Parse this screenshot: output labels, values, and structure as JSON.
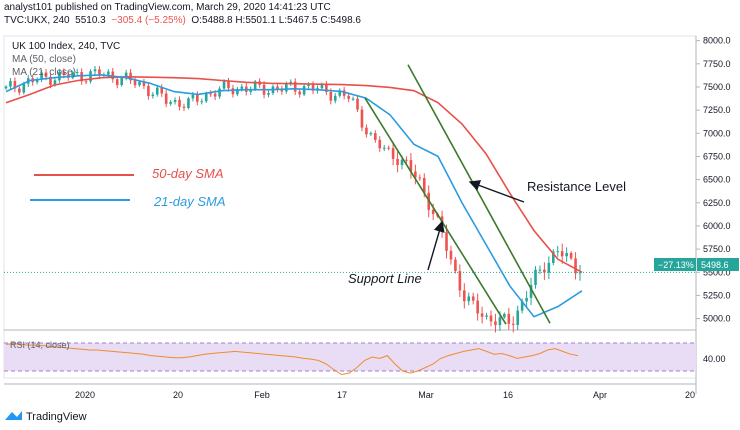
{
  "header": {
    "published": "analyst101 published on TradingView.com, March 29, 2020 14:41:23 UTC",
    "ticker_line": "TVC:UKX, 240",
    "last": "5510.3",
    "change": "−305.4 (−5.25%)",
    "o_label": "O:",
    "o_value": "5488.8",
    "h_label": "H:",
    "h_value": "5501.1",
    "l_label": "L:",
    "l_value": "5467.5",
    "c_label": "C:",
    "c_value": "5498.6"
  },
  "legend": {
    "symbol": "UK 100 Index, 240, TVC",
    "ma50": "MA (50, close)",
    "ma21": "MA (21, close)"
  },
  "annotations": {
    "sma50": "50-day SMA",
    "sma21": "21-day SMA",
    "resistance": "Resistance Level",
    "support": "Support Line"
  },
  "rsi": {
    "label": "RSI (14, close)",
    "tick": "40.00"
  },
  "price_tag": {
    "pct": "−27.13%",
    "price": "5498.6"
  },
  "footer": {
    "brand": "TradingView"
  },
  "colors": {
    "up": "#26a69a",
    "down": "#ef5350",
    "ma50": "#e8504a",
    "ma21": "#2b9ce0",
    "trendline": "#3b7a2a",
    "rsi_line": "#f08c2e",
    "rsi_band": "#e9dcf5"
  },
  "chart_data": {
    "type": "candlestick",
    "title": "UK 100 Index, 240, TVC",
    "y_ticks": [
      "8000.0",
      "7750.0",
      "7500.0",
      "7250.0",
      "7000.0",
      "6750.0",
      "6500.0",
      "6250.0",
      "6000.0",
      "5750.0",
      "5500.0",
      "5250.0",
      "5000.0"
    ],
    "ylim": [
      4920,
      8050
    ],
    "x_ticks": [
      "2020",
      "20",
      "Feb",
      "17",
      "Mar",
      "16",
      "Apr",
      "20"
    ],
    "sma50": [
      7330,
      7420,
      7520,
      7570,
      7600,
      7610,
      7605,
      7600,
      7590,
      7570,
      7550,
      7540,
      7535,
      7530,
      7525,
      7515,
      7495,
      7460,
      7330,
      7100,
      6780,
      6350,
      5950,
      5640,
      5500
    ],
    "sma21": [
      7450,
      7570,
      7600,
      7620,
      7630,
      7600,
      7540,
      7450,
      7420,
      7460,
      7470,
      7470,
      7480,
      7470,
      7450,
      7380,
      7200,
      6880,
      6750,
      6250,
      5800,
      5350,
      5020,
      5130,
      5300
    ],
    "ohlc_anchors": [
      7470,
      7560,
      7610,
      7620,
      7640,
      7600,
      7510,
      7350,
      7320,
      7450,
      7490,
      7480,
      7480,
      7500,
      7450,
      7380,
      6900,
      6750,
      6500,
      5900,
      5200,
      5000,
      4950,
      5420,
      5750,
      5498
    ],
    "rsi_range": [
      20,
      80
    ],
    "rsi_values": [
      68,
      69,
      68,
      67,
      67,
      66,
      65,
      64,
      63,
      62,
      61,
      60,
      60,
      59,
      58,
      57,
      56,
      55,
      54,
      52,
      51,
      50,
      49,
      49,
      50,
      52,
      54,
      55,
      56,
      57,
      58,
      57,
      56,
      55,
      54,
      53,
      52,
      51,
      50,
      48,
      47,
      45,
      40,
      32,
      25,
      27,
      35,
      45,
      50,
      48,
      52,
      40,
      30,
      27,
      30,
      35,
      40,
      48,
      52,
      55,
      58,
      60,
      62,
      58,
      54,
      55,
      52,
      48,
      50,
      52,
      55,
      60,
      62,
      58,
      54,
      52
    ],
    "rsi_bands": [
      70,
      30
    ]
  }
}
